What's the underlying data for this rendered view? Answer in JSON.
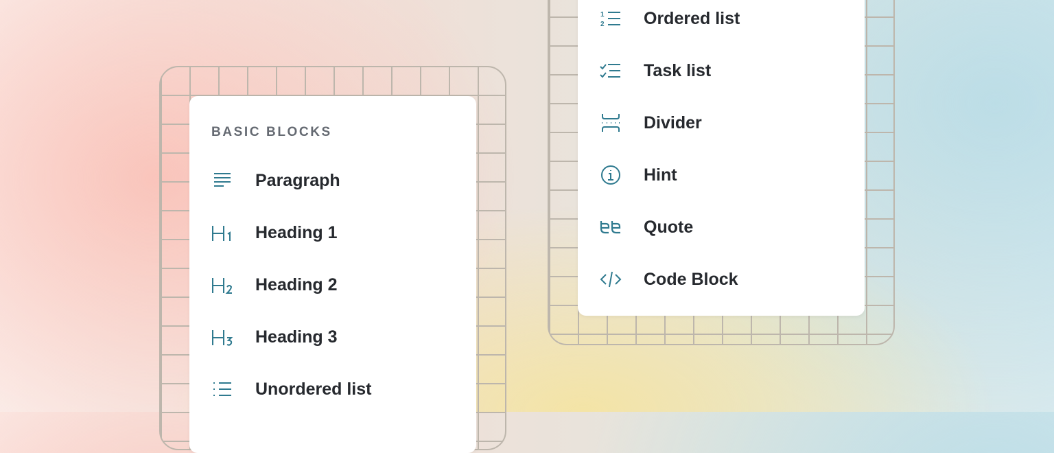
{
  "accent_color": "#2f7a8f",
  "left_menu": {
    "section_title": "BASIC BLOCKS",
    "items": [
      {
        "label": "Paragraph",
        "icon": "paragraph-icon"
      },
      {
        "label": "Heading 1",
        "icon": "heading-1-icon"
      },
      {
        "label": "Heading 2",
        "icon": "heading-2-icon"
      },
      {
        "label": "Heading 3",
        "icon": "heading-3-icon"
      },
      {
        "label": "Unordered list",
        "icon": "unordered-list-icon"
      }
    ]
  },
  "right_menu": {
    "items": [
      {
        "label": "Ordered list",
        "icon": "ordered-list-icon"
      },
      {
        "label": "Task list",
        "icon": "task-list-icon"
      },
      {
        "label": "Divider",
        "icon": "divider-icon"
      },
      {
        "label": "Hint",
        "icon": "info-icon"
      },
      {
        "label": "Quote",
        "icon": "quote-icon"
      },
      {
        "label": "Code Block",
        "icon": "code-icon"
      }
    ]
  }
}
